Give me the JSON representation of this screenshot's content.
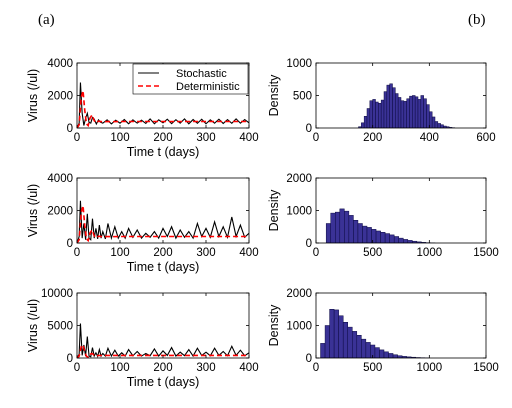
{
  "panel_labels": [
    "(a)",
    "(b)"
  ],
  "colors": {
    "stochastic": "#000000",
    "deterministic": "#ff0000",
    "histogram_fill": "#3a3296",
    "histogram_edge": "#0b0940"
  },
  "chart_data": [
    {
      "type": "line",
      "panel": "a-1",
      "xlabel": "Time t (days)",
      "ylabel": "Virus (/ul)",
      "xlim": [
        0,
        400
      ],
      "ylim": [
        0,
        4000
      ],
      "xticks": [
        0,
        100,
        200,
        300,
        400
      ],
      "yticks": [
        0,
        2000,
        4000
      ],
      "legend": {
        "placement": "top-right",
        "entries": [
          "Stochastic",
          "Deterministic"
        ]
      },
      "series": [
        {
          "name": "Stochastic",
          "style": "solid",
          "x": [
            0,
            5,
            8,
            12,
            16,
            20,
            24,
            28,
            32,
            36,
            40,
            45,
            50,
            55,
            60,
            70,
            80,
            90,
            100,
            110,
            120,
            130,
            140,
            150,
            160,
            170,
            180,
            190,
            200,
            210,
            220,
            230,
            240,
            250,
            260,
            270,
            280,
            290,
            300,
            310,
            320,
            330,
            340,
            350,
            360,
            370,
            380,
            390,
            400
          ],
          "y": [
            0,
            300,
            2800,
            900,
            150,
            600,
            900,
            350,
            300,
            650,
            550,
            250,
            500,
            350,
            300,
            500,
            250,
            480,
            300,
            520,
            260,
            500,
            300,
            480,
            280,
            560,
            260,
            500,
            320,
            540,
            270,
            510,
            300,
            560,
            260,
            520,
            290,
            540,
            260,
            500,
            300,
            540,
            280,
            520,
            290,
            560,
            300,
            520,
            320
          ]
        },
        {
          "name": "Deterministic",
          "style": "dashed",
          "x": [
            0,
            5,
            10,
            14,
            18,
            22,
            26,
            30,
            35,
            40,
            45,
            50,
            60,
            70,
            80,
            100,
            120,
            150,
            200,
            250,
            300,
            350,
            400
          ],
          "y": [
            0,
            200,
            1900,
            2300,
            1100,
            250,
            150,
            600,
            800,
            450,
            320,
            420,
            380,
            400,
            390,
            400,
            400,
            400,
            400,
            400,
            400,
            400,
            400
          ]
        }
      ]
    },
    {
      "type": "bar",
      "panel": "b-1",
      "ylabel": "Density",
      "xlim": [
        0,
        600
      ],
      "ylim": [
        0,
        1000
      ],
      "xticks": [
        0,
        200,
        400,
        600
      ],
      "yticks": [
        0,
        500,
        1000
      ],
      "bin_width": 10,
      "bin_start": 150,
      "values": [
        20,
        80,
        180,
        300,
        420,
        440,
        400,
        380,
        430,
        560,
        660,
        680,
        620,
        530,
        470,
        420,
        410,
        450,
        490,
        500,
        480,
        440,
        500,
        450,
        360,
        250,
        170,
        100,
        70,
        50,
        30,
        20,
        10,
        5
      ]
    },
    {
      "type": "line",
      "panel": "a-2",
      "xlabel": "Time t (days)",
      "ylabel": "Virus (/ul)",
      "xlim": [
        0,
        400
      ],
      "ylim": [
        0,
        4000
      ],
      "xticks": [
        0,
        100,
        200,
        300,
        400
      ],
      "yticks": [
        0,
        2000,
        4000
      ],
      "series": [
        {
          "name": "Stochastic",
          "style": "solid",
          "x": [
            0,
            5,
            8,
            12,
            16,
            20,
            24,
            28,
            32,
            36,
            40,
            44,
            48,
            52,
            56,
            60,
            66,
            72,
            80,
            88,
            96,
            104,
            112,
            120,
            130,
            140,
            150,
            160,
            170,
            180,
            190,
            200,
            210,
            220,
            230,
            240,
            250,
            260,
            270,
            280,
            290,
            300,
            310,
            320,
            330,
            340,
            350,
            360,
            370,
            380,
            390,
            400
          ],
          "y": [
            0,
            400,
            2600,
            300,
            1200,
            200,
            1800,
            300,
            200,
            1500,
            300,
            900,
            250,
            1100,
            300,
            700,
            250,
            1200,
            300,
            1000,
            300,
            700,
            300,
            900,
            350,
            800,
            300,
            600,
            350,
            700,
            300,
            900,
            400,
            1000,
            300,
            800,
            350,
            700,
            300,
            1200,
            400,
            900,
            350,
            1300,
            400,
            1000,
            350,
            1600,
            400,
            1100,
            350,
            600
          ]
        },
        {
          "name": "Deterministic",
          "style": "dashed",
          "x": [
            0,
            5,
            10,
            14,
            18,
            22,
            26,
            30,
            35,
            40,
            45,
            50,
            60,
            70,
            80,
            100,
            120,
            150,
            200,
            250,
            300,
            350,
            400
          ],
          "y": [
            0,
            200,
            1900,
            2300,
            1100,
            250,
            150,
            600,
            800,
            450,
            320,
            420,
            380,
            400,
            390,
            400,
            400,
            400,
            400,
            400,
            400,
            400,
            400
          ]
        }
      ]
    },
    {
      "type": "bar",
      "panel": "b-2",
      "ylabel": "Density",
      "xlim": [
        0,
        1500
      ],
      "ylim": [
        0,
        2000
      ],
      "xticks": [
        0,
        500,
        1000,
        1500
      ],
      "yticks": [
        0,
        1000,
        2000
      ],
      "bin_width": 40,
      "bin_start": 90,
      "values": [
        600,
        920,
        950,
        1050,
        980,
        850,
        700,
        600,
        520,
        480,
        420,
        370,
        330,
        290,
        250,
        200,
        150,
        110,
        80,
        55,
        35,
        20,
        10,
        5
      ]
    },
    {
      "type": "line",
      "panel": "a-3",
      "xlabel": "Time t (days)",
      "ylabel": "Virus (/ul)",
      "xlim": [
        0,
        400
      ],
      "ylim": [
        0,
        10000
      ],
      "xticks": [
        0,
        100,
        200,
        300,
        400
      ],
      "yticks": [
        0,
        5000,
        10000
      ],
      "series": [
        {
          "name": "Stochastic",
          "style": "solid",
          "x": [
            0,
            5,
            8,
            12,
            16,
            20,
            24,
            28,
            32,
            36,
            40,
            44,
            48,
            52,
            56,
            60,
            66,
            72,
            80,
            88,
            96,
            104,
            112,
            120,
            130,
            140,
            150,
            160,
            170,
            180,
            190,
            200,
            210,
            220,
            230,
            240,
            250,
            260,
            270,
            280,
            290,
            300,
            310,
            320,
            330,
            340,
            350,
            360,
            370,
            380,
            390,
            400
          ],
          "y": [
            0,
            600,
            5300,
            400,
            2000,
            300,
            3300,
            300,
            200,
            1600,
            300,
            800,
            250,
            1300,
            300,
            700,
            300,
            1500,
            300,
            1200,
            300,
            800,
            300,
            1300,
            350,
            1000,
            300,
            700,
            350,
            1400,
            300,
            1100,
            400,
            1600,
            300,
            900,
            350,
            1300,
            300,
            1500,
            400,
            900,
            350,
            1500,
            400,
            1000,
            350,
            1800,
            400,
            1200,
            350,
            800
          ]
        },
        {
          "name": "Deterministic",
          "style": "dashed",
          "x": [
            0,
            5,
            10,
            14,
            18,
            22,
            26,
            30,
            35,
            40,
            45,
            50,
            60,
            70,
            80,
            100,
            120,
            150,
            200,
            250,
            300,
            350,
            400
          ],
          "y": [
            0,
            300,
            1800,
            2000,
            1000,
            250,
            150,
            550,
            700,
            420,
            320,
            400,
            380,
            400,
            390,
            400,
            400,
            400,
            400,
            400,
            400,
            400,
            400
          ]
        }
      ]
    },
    {
      "type": "bar",
      "panel": "b-3",
      "ylabel": "Density",
      "xlim": [
        0,
        1500
      ],
      "ylim": [
        0,
        2000
      ],
      "xticks": [
        0,
        500,
        1000,
        1500
      ],
      "yticks": [
        0,
        1000,
        2000
      ],
      "bin_width": 40,
      "bin_start": 40,
      "values": [
        450,
        1000,
        1500,
        1480,
        1300,
        1100,
        950,
        820,
        700,
        580,
        480,
        400,
        320,
        250,
        190,
        140,
        100,
        70,
        50,
        35,
        25,
        15,
        10,
        5
      ]
    }
  ]
}
